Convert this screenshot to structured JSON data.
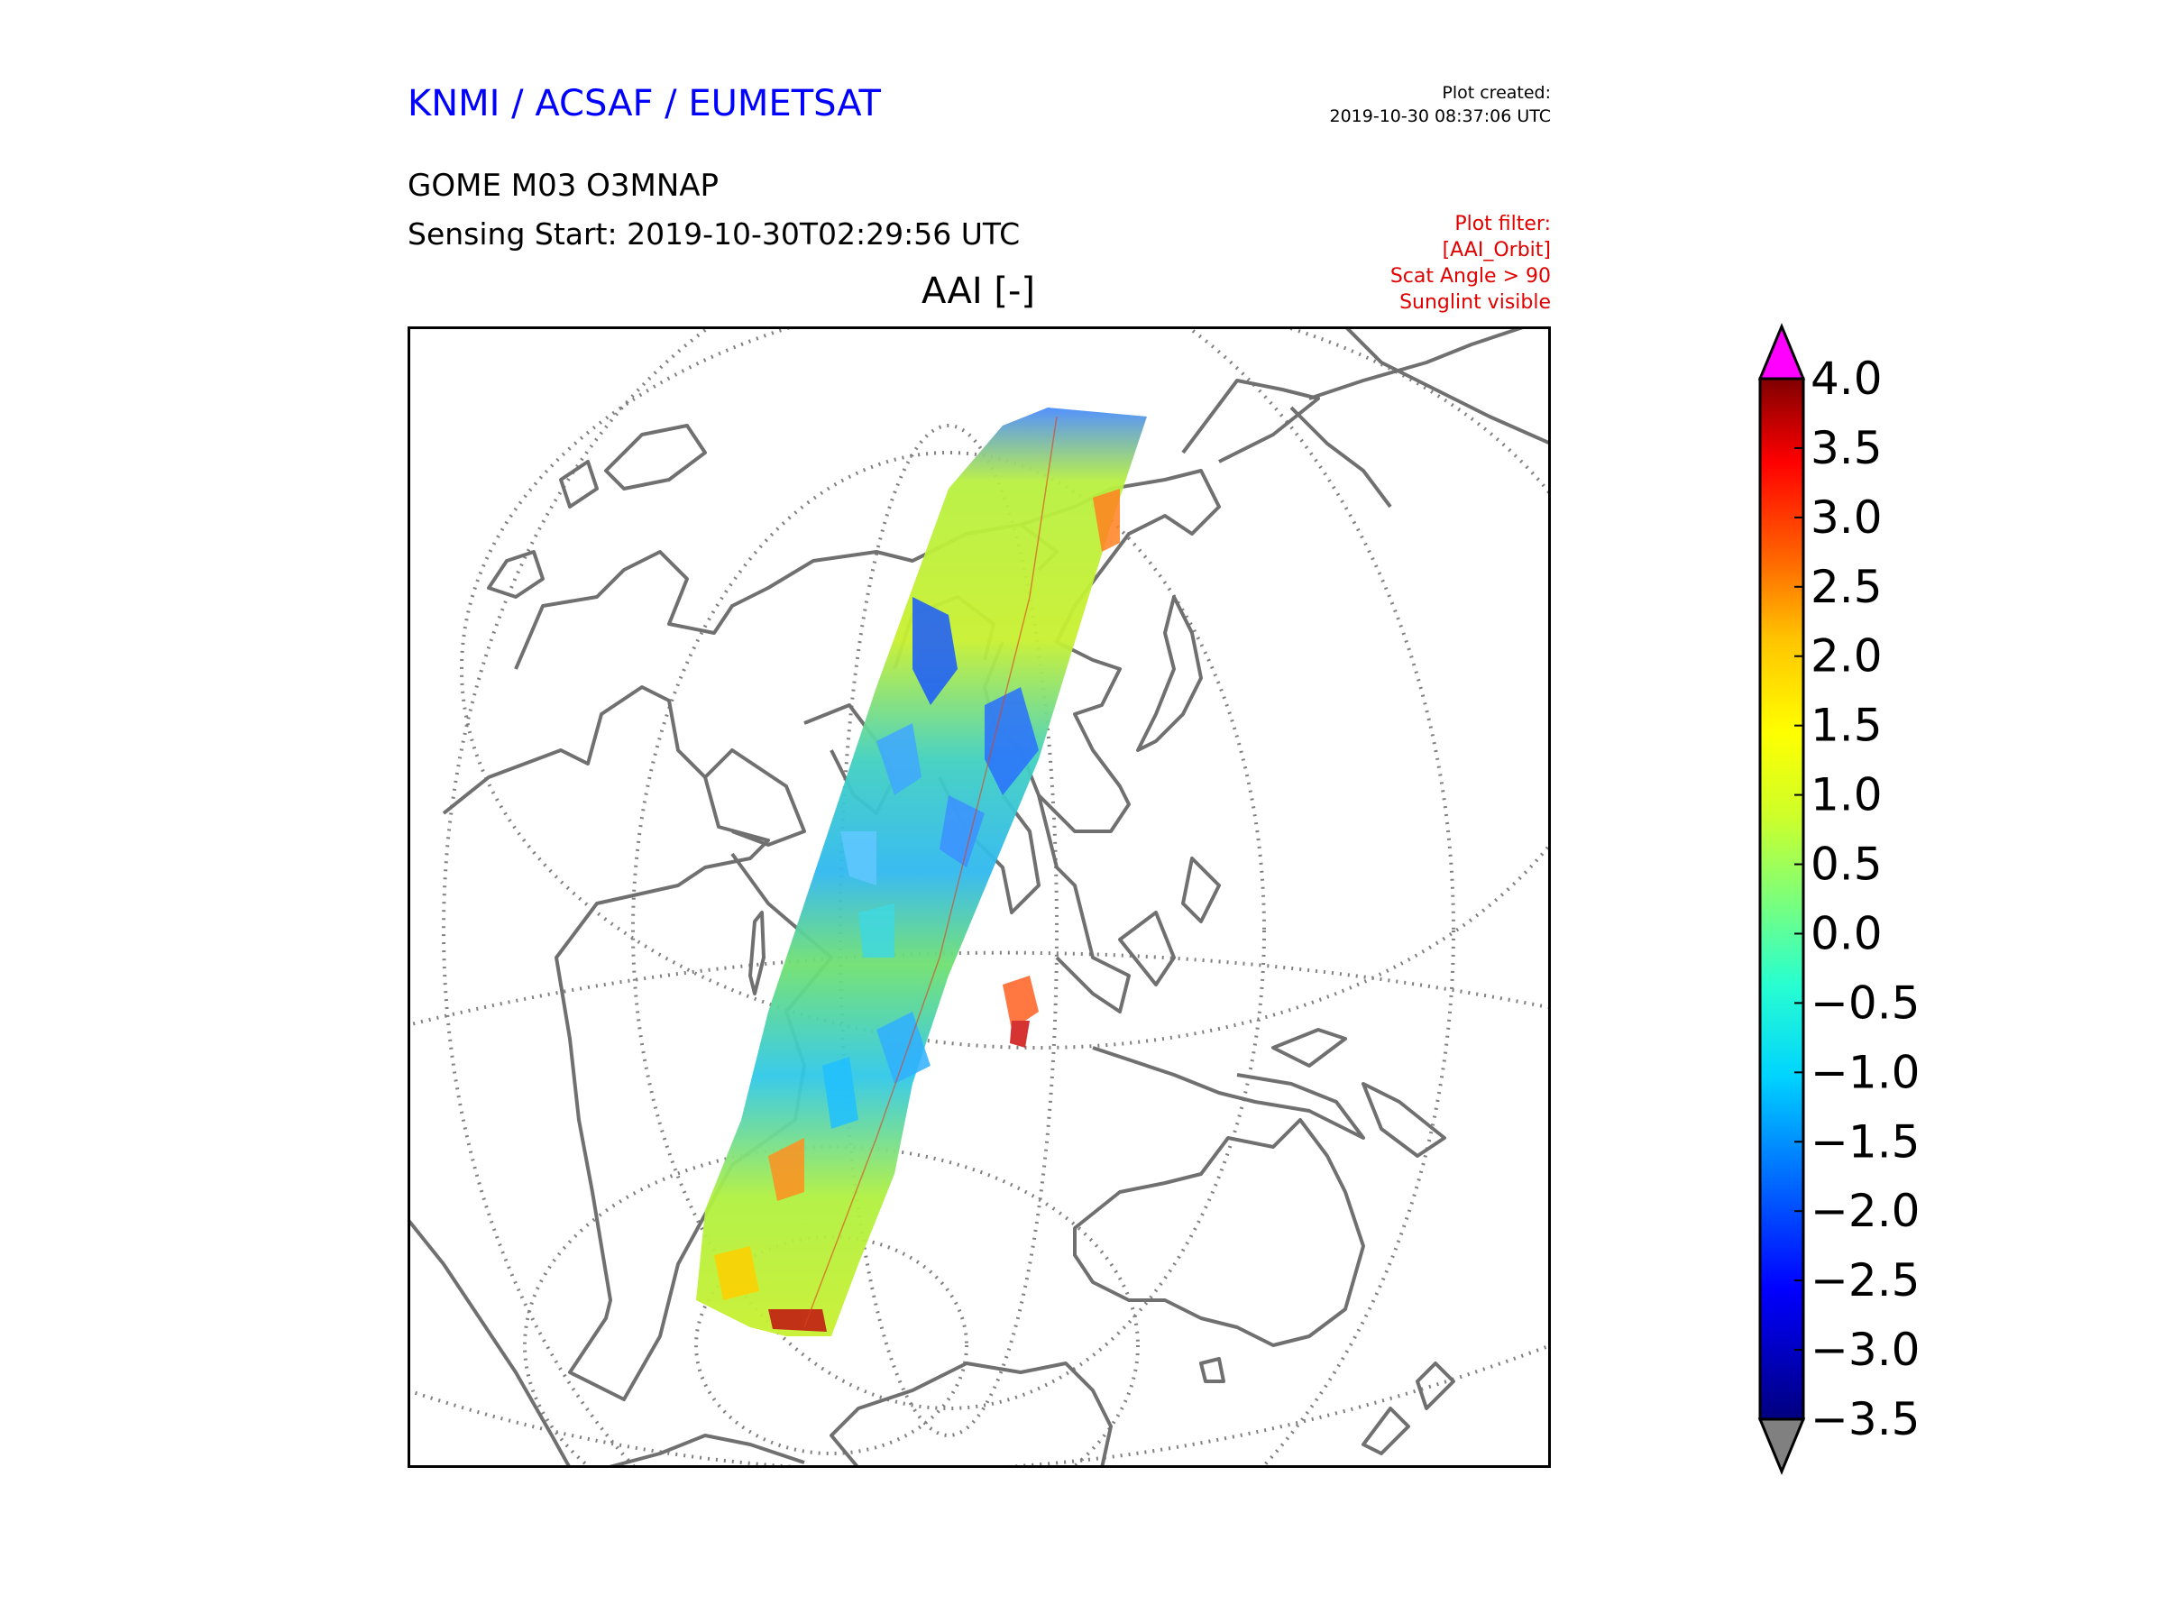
{
  "header": {
    "organisation": "KNMI / ACSAF / EUMETSAT",
    "created_line1": "Plot created:",
    "created_line2": "2019-10-30 08:37:06 UTC",
    "product": "GOME M03 O3MNAP",
    "sensing_start": "Sensing Start: 2019-10-30T02:29:56 UTC",
    "map_title": "AAI [-]"
  },
  "filter": {
    "line1": "Plot filter:",
    "line2": "[AAI_Orbit]",
    "line3": "Scat Angle > 90",
    "line4": "Sunglint visible"
  },
  "colorbar": {
    "ticks": [
      "4.0",
      "3.5",
      "3.0",
      "2.5",
      "2.0",
      "1.5",
      "1.0",
      "0.5",
      "0.0",
      "−0.5",
      "−1.0",
      "−1.5",
      "−2.0",
      "−2.5",
      "−3.0",
      "−3.5"
    ],
    "over_color": "#ff00ff",
    "under_color": "#808080",
    "colors": [
      "#00007f",
      "#0000ff",
      "#007fff",
      "#00d4ff",
      "#29ffce",
      "#7dff7a",
      "#ceff29",
      "#ffff00",
      "#ffc400",
      "#ff6200",
      "#ff0000",
      "#7f0000"
    ]
  },
  "map": {
    "projection_note": "",
    "coastline_color": "#707070",
    "graticule_color": "#808080"
  }
}
